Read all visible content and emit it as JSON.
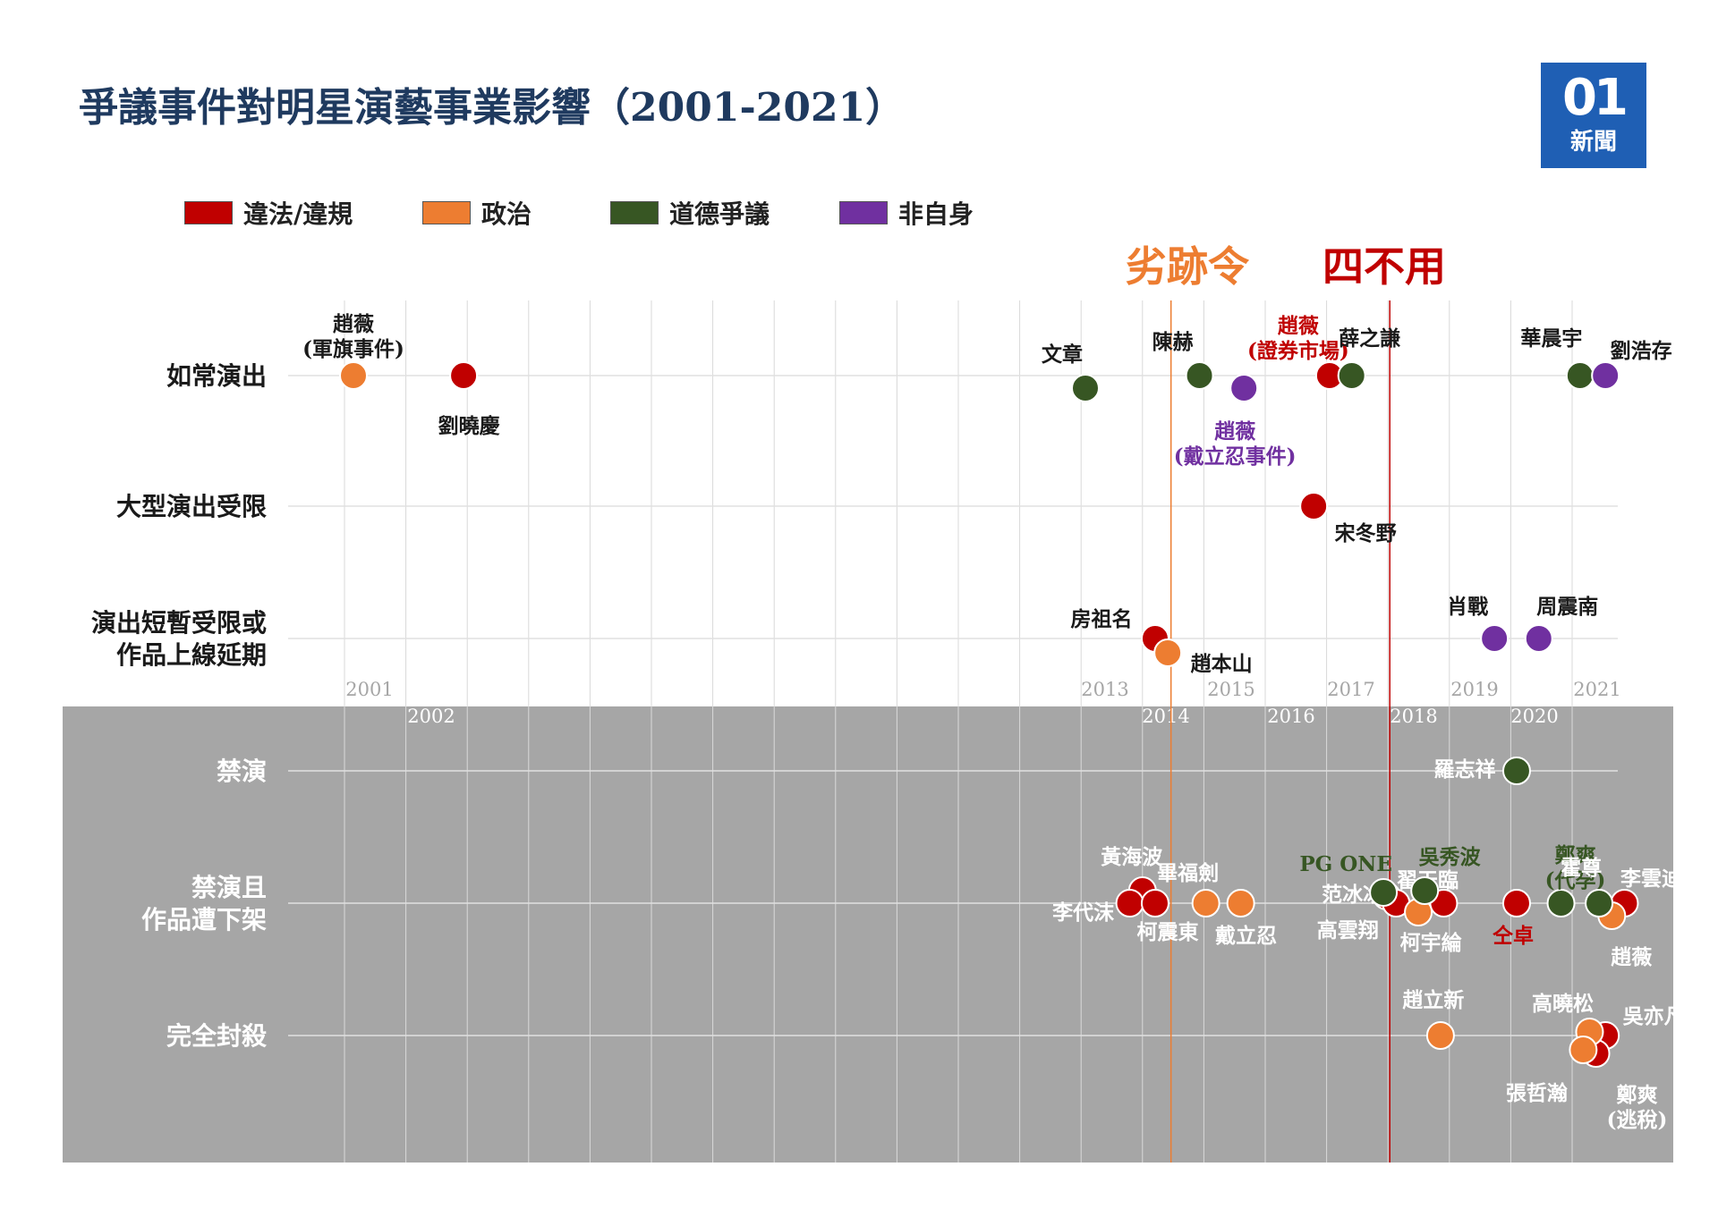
{
  "title": "爭議事件對明星演藝事業影響（2001-2021）",
  "logo": {
    "mark": "01",
    "word": "新聞",
    "color": "#1f5fb4"
  },
  "legend": [
    {
      "label": "違法/違規",
      "color": "#c00000"
    },
    {
      "label": "政治",
      "color": "#ed7d31"
    },
    {
      "label": "道德爭議",
      "color": "#375623"
    },
    {
      "label": "非自身",
      "color": "#7030a0"
    }
  ],
  "policies": [
    {
      "label": "劣跡令",
      "color": "#ed7d31"
    },
    {
      "label": "四不用",
      "color": "#c00000"
    }
  ],
  "chart_data": {
    "type": "scatter",
    "title": "爭議事件對明星演藝事業影響（2001-2021）",
    "categories": [
      "如常演出",
      "大型演出受限",
      "演出短暫受限或\n作品上線延期",
      "禁演",
      "禁演且\n作品遭下架",
      "完全封殺"
    ],
    "years": [
      "2001",
      "2002",
      "2013",
      "2014",
      "2015",
      "2016",
      "2017",
      "2018",
      "2019",
      "2020",
      "2021"
    ],
    "policy_lines": [
      {
        "label": "劣跡令",
        "x": 2014.35
      },
      {
        "label": "四不用",
        "x": 2017.8
      }
    ],
    "series": [
      {
        "name": "違法/違規",
        "color": "#c00000",
        "points": [
          {
            "label": "劉曉慶",
            "x": 2002.5,
            "y": "如常演出"
          },
          {
            "label": "趙薇\n(證券市場)",
            "x": 2016.85,
            "y": "如常演出"
          },
          {
            "label": "宋冬野",
            "x": 2016.6,
            "y": "大型演出受限"
          },
          {
            "label": "房祖名",
            "x": 2014.1,
            "y": "演出短暫受限或\n作品上線延期"
          },
          {
            "label": "黃海波",
            "x": 2013.9,
            "y": "禁演且\n作品遭下架"
          },
          {
            "label": "李代沫",
            "x": 2013.7,
            "y": "禁演且\n作品遭下架"
          },
          {
            "label": "柯震東",
            "x": 2014.1,
            "y": "禁演且\n作品遭下架"
          },
          {
            "label": "范冰冰",
            "x": 2017.75,
            "y": "禁演且\n作品遭下架"
          },
          {
            "label": "高雲翔",
            "x": 2017.9,
            "y": "禁演且\n作品遭下架"
          },
          {
            "label": "翟天臨",
            "x": 2018.65,
            "y": "禁演且\n作品遭下架"
          },
          {
            "label": "仝卓",
            "x": 2019.8,
            "y": "禁演且\n作品遭下架"
          },
          {
            "label": "李雲迪",
            "x": 2021.5,
            "y": "禁演且\n作品遭下架"
          },
          {
            "label": "吳亦凡",
            "x": 2021.2,
            "y": "完全封殺"
          },
          {
            "label": "鄭爽\n(逃稅)",
            "x": 2021.05,
            "y": "完全封殺"
          }
        ]
      },
      {
        "name": "政治",
        "color": "#ed7d31",
        "points": [
          {
            "label": "趙薇\n(軍旗事件)",
            "x": 2001.1,
            "y": "如常演出"
          },
          {
            "label": "趙本山",
            "x": 2014.3,
            "y": "演出短暫受限或\n作品上線延期"
          },
          {
            "label": "畢福劍",
            "x": 2014.9,
            "y": "禁演且\n作品遭下架"
          },
          {
            "label": "戴立忍",
            "x": 2015.45,
            "y": "禁演且\n作品遭下架"
          },
          {
            "label": "柯宇綸",
            "x": 2018.25,
            "y": "禁演且\n作品遭下架"
          },
          {
            "label": "趙薇",
            "x": 2021.3,
            "y": "禁演且\n作品遭下架"
          },
          {
            "label": "趙立新",
            "x": 2018.6,
            "y": "完全封殺"
          },
          {
            "label": "高曉松",
            "x": 2020.95,
            "y": "完全封殺"
          },
          {
            "label": "張哲瀚",
            "x": 2020.85,
            "y": "完全封殺"
          }
        ]
      },
      {
        "name": "道德爭議",
        "color": "#375623",
        "points": [
          {
            "label": "文章",
            "x": 2013.0,
            "y": "如常演出"
          },
          {
            "label": "陳赫",
            "x": 2014.8,
            "y": "如常演出"
          },
          {
            "label": "薛之謙",
            "x": 2017.2,
            "y": "如常演出"
          },
          {
            "label": "華晨宇",
            "x": 2020.8,
            "y": "如常演出"
          },
          {
            "label": "羅志祥",
            "x": 2019.8,
            "y": "禁演"
          },
          {
            "label": "PG ONE",
            "x": 2017.7,
            "y": "禁演且\n作品遭下架"
          },
          {
            "label": "吳秀波",
            "x": 2018.35,
            "y": "禁演且\n作品遭下架"
          },
          {
            "label": "鄭爽\n(代孕)",
            "x": 2020.5,
            "y": "禁演且\n作品遭下架"
          },
          {
            "label": "霍尊",
            "x": 2021.1,
            "y": "禁演且\n作品遭下架"
          }
        ]
      },
      {
        "name": "非自身",
        "color": "#7030a0",
        "points": [
          {
            "label": "趙薇\n(戴立忍事件)",
            "x": 2015.5,
            "y": "如常演出"
          },
          {
            "label": "劉浩存",
            "x": 2021.2,
            "y": "如常演出"
          },
          {
            "label": "肖戰",
            "x": 2019.45,
            "y": "演出短暫受限或\n作品上線延期"
          },
          {
            "label": "周震南",
            "x": 2020.15,
            "y": "演出短暫受限或\n作品上線延期"
          }
        ]
      }
    ]
  }
}
